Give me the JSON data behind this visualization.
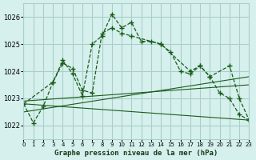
{
  "title": "Graphe pression niveau de la mer (hPa)",
  "bg_color": "#d6f0ed",
  "grid_color": "#aacfca",
  "line_color": "#1a5c1a",
  "xlim": [
    0,
    23
  ],
  "ylim": [
    1021.5,
    1026.5
  ],
  "yticks": [
    1022,
    1023,
    1024,
    1025,
    1026
  ],
  "xtick_labels": [
    "0",
    "1",
    "2",
    "3",
    "4",
    "5",
    "6",
    "7",
    "8",
    "9",
    "10",
    "11",
    "12",
    "13",
    "14",
    "15",
    "16",
    "17",
    "18",
    "19",
    "20",
    "21",
    "22",
    "23"
  ],
  "series1_x": [
    0,
    1,
    2,
    3,
    4,
    5,
    6,
    7,
    8,
    9,
    10,
    11,
    12,
    13,
    14,
    15,
    16,
    17,
    18,
    19,
    20,
    21,
    22,
    23
  ],
  "series1_y": [
    1022.8,
    1022.1,
    1022.7,
    1023.6,
    1024.4,
    1023.9,
    1023.1,
    1025.0,
    1025.3,
    1026.1,
    1025.6,
    1025.8,
    1025.1,
    1025.1,
    1025.0,
    1024.7,
    1024.0,
    1023.9,
    1024.2,
    1023.8,
    1023.2,
    1023.0,
    1022.4,
    1022.2
  ],
  "series2_x": [
    0,
    3,
    4,
    5,
    6,
    7,
    8,
    9,
    10,
    11,
    14,
    17,
    18,
    19,
    21,
    22,
    23
  ],
  "series2_y": [
    1022.8,
    1023.6,
    1024.3,
    1024.1,
    1023.3,
    1023.2,
    1025.4,
    1025.6,
    1025.4,
    1025.3,
    1025.0,
    1024.0,
    1024.2,
    1023.8,
    1024.2,
    1023.0,
    1022.2
  ],
  "trend1_x": [
    0,
    23
  ],
  "trend1_y": [
    1022.5,
    1023.8
  ],
  "trend2_x": [
    0,
    23
  ],
  "trend2_y": [
    1022.8,
    1022.2
  ],
  "trend3_x": [
    0,
    23
  ],
  "trend3_y": [
    1022.9,
    1023.5
  ]
}
